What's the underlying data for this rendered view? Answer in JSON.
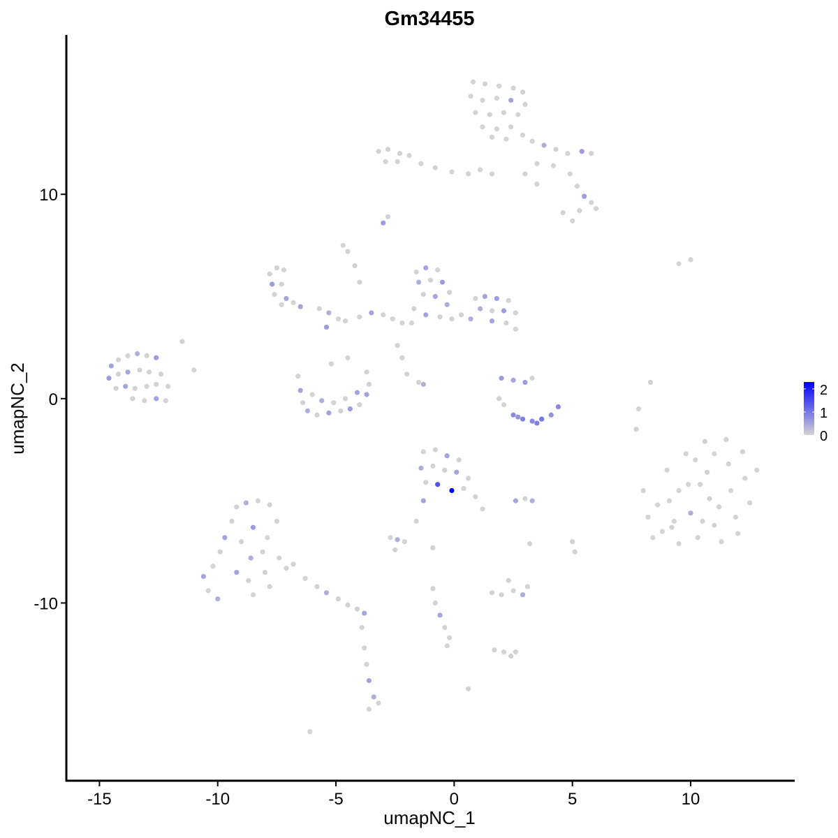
{
  "chart_data": {
    "type": "scatter",
    "title": "Gm34455",
    "xlabel": "umapNC_1",
    "ylabel": "umapNC_2",
    "xlim": [
      -16.4,
      14.4
    ],
    "ylim": [
      -18.7,
      17.8
    ],
    "xticks": [
      -15,
      -10,
      -5,
      0,
      5,
      10
    ],
    "xtick_labels": [
      "-15",
      "-10",
      "-5",
      "0",
      "5",
      "10"
    ],
    "yticks": [
      -10,
      0,
      10
    ],
    "ytick_labels": [
      "-10",
      "0",
      "10"
    ],
    "grid": false,
    "legend": {
      "placement": "right",
      "type": "colorbar",
      "ticks": [
        0,
        1,
        2
      ],
      "tick_labels": [
        "0",
        "1",
        "2"
      ],
      "range": [
        0,
        2.3
      ]
    },
    "colors": {
      "low": "#d3d3d3",
      "high": "#0000ff"
    },
    "points": [
      [
        0.8,
        15.5,
        0
      ],
      [
        1.3,
        15.4,
        0
      ],
      [
        1.9,
        15.3,
        0
      ],
      [
        2.5,
        15.2,
        0
      ],
      [
        2.9,
        15.0,
        0
      ],
      [
        0.7,
        14.8,
        0
      ],
      [
        1.2,
        14.6,
        0
      ],
      [
        1.8,
        14.7,
        0
      ],
      [
        2.4,
        14.6,
        0.5
      ],
      [
        3.0,
        14.4,
        0
      ],
      [
        0.9,
        14.0,
        0
      ],
      [
        1.5,
        13.9,
        0
      ],
      [
        2.1,
        14.0,
        0
      ],
      [
        2.7,
        13.9,
        0
      ],
      [
        1.2,
        13.3,
        0
      ],
      [
        1.8,
        13.2,
        0
      ],
      [
        2.4,
        13.3,
        0
      ],
      [
        1.6,
        12.8,
        0
      ],
      [
        2.2,
        12.7,
        0
      ],
      [
        2.9,
        12.9,
        0
      ],
      [
        3.3,
        12.6,
        0
      ],
      [
        3.8,
        12.4,
        0.4
      ],
      [
        4.3,
        12.2,
        0
      ],
      [
        4.8,
        12.0,
        0
      ],
      [
        5.4,
        12.1,
        0.6
      ],
      [
        5.8,
        12.0,
        0
      ],
      [
        3.5,
        11.5,
        0
      ],
      [
        4.2,
        11.4,
        0
      ],
      [
        4.9,
        11.0,
        0
      ],
      [
        5.2,
        10.4,
        0
      ],
      [
        5.5,
        9.9,
        0.6
      ],
      [
        5.8,
        9.6,
        0
      ],
      [
        6.0,
        9.3,
        0
      ],
      [
        5.3,
        9.2,
        0
      ],
      [
        4.6,
        9.1,
        0
      ],
      [
        5.0,
        8.7,
        0
      ],
      [
        3.0,
        11.0,
        0
      ],
      [
        3.5,
        10.5,
        0
      ],
      [
        -3.2,
        12.1,
        0
      ],
      [
        -2.8,
        12.2,
        0
      ],
      [
        -2.3,
        12.0,
        0
      ],
      [
        -1.9,
        11.9,
        0
      ],
      [
        -2.9,
        11.6,
        0
      ],
      [
        -2.4,
        11.6,
        0
      ],
      [
        -1.4,
        11.5,
        0
      ],
      [
        -0.8,
        11.3,
        0
      ],
      [
        -0.1,
        11.1,
        0
      ],
      [
        0.6,
        11.0,
        0
      ],
      [
        1.1,
        11.2,
        0
      ],
      [
        1.6,
        11.0,
        0
      ],
      [
        -3.0,
        8.6,
        0.6
      ],
      [
        -2.8,
        8.9,
        0
      ],
      [
        -4.7,
        7.5,
        0
      ],
      [
        -4.5,
        7.2,
        0
      ],
      [
        -4.2,
        6.5,
        0
      ],
      [
        -4.0,
        5.7,
        0
      ],
      [
        -7.8,
        6.1,
        0
      ],
      [
        -7.5,
        6.4,
        0
      ],
      [
        -7.2,
        6.3,
        0
      ],
      [
        -7.7,
        5.6,
        0.6
      ],
      [
        -7.3,
        5.6,
        0
      ],
      [
        -7.6,
        5.1,
        0
      ],
      [
        -7.1,
        4.9,
        0.5
      ],
      [
        -6.8,
        4.7,
        0
      ],
      [
        -6.5,
        4.5,
        0.5
      ],
      [
        -7.3,
        4.6,
        0
      ],
      [
        -5.7,
        4.4,
        0
      ],
      [
        -5.3,
        4.2,
        0.4
      ],
      [
        -4.9,
        3.9,
        0
      ],
      [
        -5.4,
        3.5,
        0.6
      ],
      [
        -4.6,
        3.8,
        0
      ],
      [
        -4.0,
        4.0,
        0
      ],
      [
        -3.5,
        4.2,
        0.5
      ],
      [
        -3.0,
        4.1,
        0
      ],
      [
        -2.6,
        3.9,
        0
      ],
      [
        -2.2,
        3.7,
        0
      ],
      [
        -1.6,
        6.2,
        0
      ],
      [
        -1.2,
        6.4,
        0.5
      ],
      [
        -0.7,
        6.3,
        0
      ],
      [
        -1.5,
        5.7,
        0.4
      ],
      [
        -1.0,
        5.8,
        0
      ],
      [
        -0.5,
        5.7,
        0.6
      ],
      [
        -0.2,
        5.2,
        0
      ],
      [
        -1.3,
        5.1,
        0
      ],
      [
        -0.8,
        5.0,
        0.5
      ],
      [
        -0.3,
        4.6,
        0.4
      ],
      [
        -1.7,
        4.4,
        0
      ],
      [
        -1.2,
        4.1,
        0.5
      ],
      [
        -0.6,
        4.0,
        0
      ],
      [
        -0.1,
        3.9,
        0
      ],
      [
        -1.8,
        3.7,
        0
      ],
      [
        0.3,
        4.1,
        0
      ],
      [
        0.7,
        3.9,
        0.4
      ],
      [
        0.9,
        4.9,
        0
      ],
      [
        1.3,
        5.0,
        0.5
      ],
      [
        1.8,
        4.9,
        0.6
      ],
      [
        2.3,
        4.8,
        0
      ],
      [
        1.1,
        4.4,
        0.4
      ],
      [
        1.6,
        4.3,
        0
      ],
      [
        2.1,
        4.3,
        0.6
      ],
      [
        2.6,
        4.2,
        0
      ],
      [
        1.6,
        3.8,
        0.5
      ],
      [
        2.2,
        3.7,
        0
      ],
      [
        2.6,
        3.4,
        0
      ],
      [
        -14.5,
        1.6,
        0.5
      ],
      [
        -14.2,
        1.9,
        0
      ],
      [
        -13.8,
        2.1,
        0
      ],
      [
        -13.4,
        2.2,
        0.4
      ],
      [
        -13.0,
        2.1,
        0
      ],
      [
        -12.6,
        2.0,
        0.6
      ],
      [
        -14.6,
        1.0,
        0.6
      ],
      [
        -14.2,
        1.2,
        0
      ],
      [
        -13.8,
        1.3,
        0.5
      ],
      [
        -13.3,
        1.4,
        0
      ],
      [
        -12.9,
        1.3,
        0
      ],
      [
        -12.4,
        1.2,
        0
      ],
      [
        -14.3,
        0.5,
        0
      ],
      [
        -13.9,
        0.6,
        0.5
      ],
      [
        -13.5,
        0.5,
        0
      ],
      [
        -13.0,
        0.6,
        0
      ],
      [
        -12.6,
        0.7,
        0
      ],
      [
        -12.1,
        0.6,
        0
      ],
      [
        -13.6,
        0.0,
        0
      ],
      [
        -13.1,
        -0.1,
        0
      ],
      [
        -12.6,
        0.0,
        0.5
      ],
      [
        -12.2,
        -0.1,
        0
      ],
      [
        -11.5,
        2.8,
        0
      ],
      [
        -11.0,
        1.4,
        0
      ],
      [
        -6.6,
        1.1,
        0
      ],
      [
        -6.5,
        0.4,
        0.5
      ],
      [
        -6.4,
        -0.2,
        0
      ],
      [
        -6.2,
        -0.6,
        0.4
      ],
      [
        -5.8,
        -0.8,
        0
      ],
      [
        -5.3,
        -0.7,
        0.5
      ],
      [
        -4.8,
        -0.6,
        0
      ],
      [
        -4.4,
        -0.5,
        0.6
      ],
      [
        -4.0,
        -0.3,
        0
      ],
      [
        -3.7,
        0.2,
        0.5
      ],
      [
        -3.6,
        0.7,
        0
      ],
      [
        -3.7,
        1.3,
        0
      ],
      [
        -6.0,
        0.2,
        0
      ],
      [
        -5.6,
        -0.1,
        0.4
      ],
      [
        -5.1,
        -0.2,
        0
      ],
      [
        -4.6,
        0.0,
        0
      ],
      [
        -4.1,
        0.3,
        0.5
      ],
      [
        -5.2,
        1.7,
        0
      ],
      [
        -4.5,
        2.0,
        0
      ],
      [
        -2.4,
        2.6,
        0
      ],
      [
        -2.2,
        2.0,
        0
      ],
      [
        -2.0,
        1.2,
        0
      ],
      [
        -1.5,
        0.8,
        0
      ],
      [
        -1.3,
        0.7,
        0.4
      ],
      [
        2.0,
        1.0,
        0.6
      ],
      [
        2.5,
        0.9,
        0.5
      ],
      [
        3.0,
        0.8,
        0.6
      ],
      [
        3.3,
        1.0,
        0
      ],
      [
        2.1,
        -0.3,
        0
      ],
      [
        2.5,
        -0.8,
        0.8
      ],
      [
        2.9,
        -1.0,
        0.9
      ],
      [
        3.3,
        -1.1,
        0.8
      ],
      [
        3.7,
        -1.0,
        1.0
      ],
      [
        4.1,
        -0.8,
        0.7
      ],
      [
        4.4,
        -0.4,
        0.8
      ],
      [
        1.9,
        0.0,
        0
      ],
      [
        3.5,
        -1.2,
        0.9
      ],
      [
        2.7,
        -0.9,
        0.7
      ],
      [
        7.8,
        -0.5,
        0
      ],
      [
        7.7,
        -1.5,
        0
      ],
      [
        8.3,
        0.8,
        0
      ],
      [
        8.0,
        -4.5,
        0
      ],
      [
        8.2,
        -5.8,
        0
      ],
      [
        8.4,
        -6.8,
        0
      ],
      [
        9.0,
        -3.5,
        0
      ],
      [
        9.1,
        -5.0,
        0
      ],
      [
        9.2,
        -6.3,
        0
      ],
      [
        9.5,
        -7.1,
        0
      ],
      [
        9.8,
        -2.7,
        0
      ],
      [
        9.9,
        -4.2,
        0
      ],
      [
        10.0,
        -5.6,
        0.4
      ],
      [
        10.3,
        -6.8,
        0
      ],
      [
        10.6,
        -2.1,
        0
      ],
      [
        10.7,
        -3.6,
        0
      ],
      [
        10.8,
        -4.9,
        0
      ],
      [
        11.0,
        -6.2,
        0
      ],
      [
        11.3,
        -7.0,
        0
      ],
      [
        11.5,
        -2.0,
        0
      ],
      [
        11.6,
        -3.2,
        0
      ],
      [
        11.7,
        -4.5,
        0
      ],
      [
        11.9,
        -5.8,
        0
      ],
      [
        12.2,
        -2.6,
        0
      ],
      [
        12.3,
        -3.9,
        0
      ],
      [
        12.5,
        -5.1,
        0
      ],
      [
        12.8,
        -3.5,
        0
      ],
      [
        8.6,
        -5.2,
        0
      ],
      [
        9.5,
        -4.5,
        0
      ],
      [
        10.4,
        -4.2,
        0
      ],
      [
        11.2,
        -5.3,
        0
      ],
      [
        10.2,
        -3.0,
        0
      ],
      [
        11.0,
        -2.7,
        0
      ],
      [
        9.3,
        -6.0,
        0
      ],
      [
        12.0,
        -6.6,
        0
      ],
      [
        10.5,
        -6.0,
        0
      ],
      [
        8.8,
        -6.5,
        0
      ],
      [
        -1.3,
        -2.6,
        0
      ],
      [
        -0.8,
        -2.5,
        0
      ],
      [
        -0.3,
        -2.8,
        0.5
      ],
      [
        0.2,
        -3.0,
        0
      ],
      [
        -1.4,
        -3.4,
        0.4
      ],
      [
        -0.9,
        -3.3,
        0
      ],
      [
        -0.4,
        -3.5,
        0
      ],
      [
        0.1,
        -3.6,
        0.5
      ],
      [
        0.6,
        -3.9,
        0
      ],
      [
        -1.2,
        -4.1,
        0
      ],
      [
        -0.7,
        -4.2,
        1.4
      ],
      [
        -0.1,
        -4.5,
        2.3
      ],
      [
        0.4,
        -4.4,
        0
      ],
      [
        0.9,
        -4.8,
        0
      ],
      [
        1.2,
        -5.4,
        0
      ],
      [
        -1.3,
        -5.0,
        0.5
      ],
      [
        -1.6,
        -6.0,
        0
      ],
      [
        2.6,
        -5.0,
        0.5
      ],
      [
        3.0,
        -4.9,
        0
      ],
      [
        3.3,
        -5.0,
        0.4
      ],
      [
        -10.6,
        -8.7,
        0.5
      ],
      [
        -10.4,
        -9.4,
        0
      ],
      [
        -10.0,
        -9.8,
        0.4
      ],
      [
        -10.2,
        -8.2,
        0
      ],
      [
        -9.9,
        -7.5,
        0
      ],
      [
        -9.7,
        -6.8,
        0.5
      ],
      [
        -9.4,
        -6.0,
        0
      ],
      [
        -9.2,
        -5.3,
        0
      ],
      [
        -8.8,
        -5.1,
        0.4
      ],
      [
        -8.3,
        -5.0,
        0
      ],
      [
        -7.8,
        -5.2,
        0
      ],
      [
        -7.5,
        -6.0,
        0
      ],
      [
        -7.9,
        -6.8,
        0
      ],
      [
        -8.5,
        -6.3,
        0.6
      ],
      [
        -9.0,
        -7.0,
        0
      ],
      [
        -8.6,
        -7.8,
        0.4
      ],
      [
        -8.1,
        -7.5,
        0
      ],
      [
        -7.4,
        -7.8,
        0
      ],
      [
        -9.2,
        -8.5,
        0.5
      ],
      [
        -8.7,
        -8.9,
        0
      ],
      [
        -8.0,
        -8.5,
        0
      ],
      [
        -7.1,
        -8.3,
        0
      ],
      [
        -8.5,
        -9.6,
        0
      ],
      [
        -7.8,
        -9.2,
        0
      ],
      [
        -6.8,
        -8.1,
        0
      ],
      [
        -6.3,
        -8.8,
        0
      ],
      [
        -5.8,
        -9.2,
        0
      ],
      [
        -5.4,
        -9.5,
        0.4
      ],
      [
        -4.9,
        -9.8,
        0
      ],
      [
        -4.5,
        -10.1,
        0
      ],
      [
        -4.1,
        -10.3,
        0
      ],
      [
        -3.8,
        -10.5,
        0.5
      ],
      [
        -3.9,
        -11.2,
        0
      ],
      [
        -3.8,
        -12.2,
        0
      ],
      [
        -3.7,
        -13.0,
        0
      ],
      [
        -3.6,
        -13.8,
        0.5
      ],
      [
        -3.4,
        -14.6,
        0.4
      ],
      [
        -3.6,
        -15.2,
        0
      ],
      [
        -3.2,
        -14.9,
        0
      ],
      [
        -6.1,
        -16.3,
        0
      ],
      [
        -2.7,
        -6.8,
        0
      ],
      [
        -2.4,
        -6.9,
        0.4
      ],
      [
        -2.1,
        -7.0,
        0
      ],
      [
        -2.5,
        -7.4,
        0
      ],
      [
        -0.9,
        -7.3,
        0
      ],
      [
        1.6,
        -9.5,
        0
      ],
      [
        2.0,
        -9.6,
        0
      ],
      [
        2.5,
        -9.4,
        0
      ],
      [
        2.9,
        -9.6,
        0.4
      ],
      [
        3.1,
        -9.2,
        0
      ],
      [
        2.3,
        -8.9,
        0
      ],
      [
        -0.9,
        -9.3,
        0
      ],
      [
        -0.8,
        -10.0,
        0
      ],
      [
        -0.6,
        -10.6,
        0.5
      ],
      [
        -0.4,
        -11.2,
        0
      ],
      [
        -0.2,
        -11.7,
        0
      ],
      [
        -0.3,
        -12.1,
        0
      ],
      [
        1.7,
        -12.3,
        0
      ],
      [
        2.1,
        -12.4,
        0
      ],
      [
        2.4,
        -12.6,
        0
      ],
      [
        2.6,
        -12.4,
        0
      ],
      [
        0.6,
        -14.2,
        0
      ],
      [
        3.2,
        -7.1,
        0
      ],
      [
        5.0,
        -7.0,
        0
      ],
      [
        5.1,
        -7.5,
        0
      ],
      [
        9.5,
        6.6,
        0
      ],
      [
        10.0,
        6.8,
        0
      ]
    ]
  }
}
